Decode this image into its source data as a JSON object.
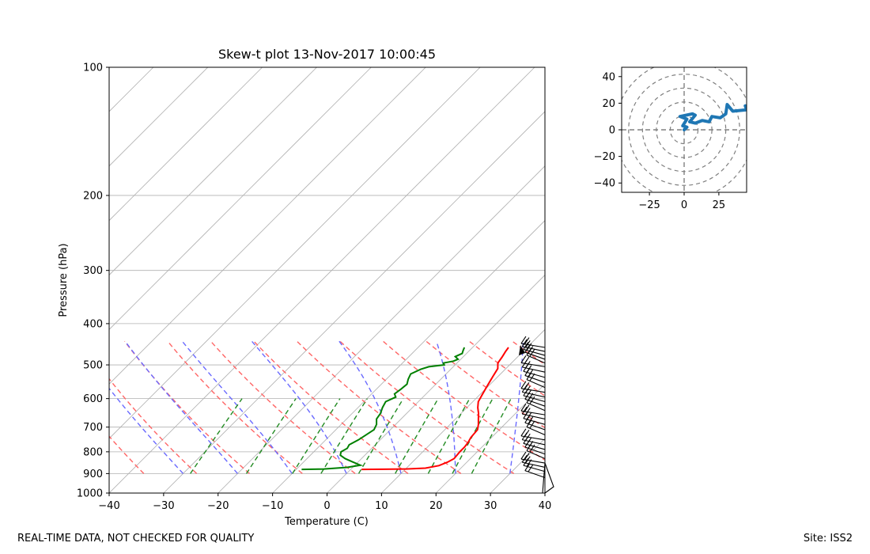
{
  "chart_data": [
    {
      "type": "skew-t",
      "title": "Skew-t plot 13-Nov-2017 10:00:45",
      "xlabel": "Temperature (C)",
      "ylabel": "Pressure (hPa)",
      "xlim": [
        -40,
        40
      ],
      "ylim": [
        1000,
        100
      ],
      "y_scale": "log",
      "grid": true,
      "x_ticks": [
        "−40",
        "−30",
        "−20",
        "−10",
        "0",
        "10",
        "20",
        "30",
        "40"
      ],
      "x_tick_values": [
        -40,
        -30,
        -20,
        -10,
        0,
        10,
        20,
        30,
        40
      ],
      "y_ticks": [
        "100",
        "200",
        "300",
        "400",
        "500",
        "600",
        "700",
        "800",
        "900",
        "1000"
      ],
      "y_tick_values": [
        100,
        200,
        300,
        400,
        500,
        600,
        700,
        800,
        900,
        1000
      ],
      "series": [
        {
          "name": "temperature",
          "color": "#ff0000",
          "points": [
            [
              880,
              2.0
            ],
            [
              879,
              6.0
            ],
            [
              878,
              10.0
            ],
            [
              874,
              13.5
            ],
            [
              862,
              15.5
            ],
            [
              845,
              16.5
            ],
            [
              830,
              17.0
            ],
            [
              800,
              16.8
            ],
            [
              780,
              16.8
            ],
            [
              760,
              16.6
            ],
            [
              740,
              16.2
            ],
            [
              710,
              16.0
            ],
            [
              690,
              15.2
            ],
            [
              670,
              14.2
            ],
            [
              650,
              13.2
            ],
            [
              630,
              12.0
            ],
            [
              610,
              11.0
            ],
            [
              590,
              10.5
            ],
            [
              570,
              10.0
            ],
            [
              550,
              9.5
            ],
            [
              530,
              9.0
            ],
            [
              510,
              8.5
            ],
            [
              495,
              7.5
            ],
            [
              480,
              7.2
            ],
            [
              465,
              6.8
            ],
            [
              455,
              6.6
            ]
          ]
        },
        {
          "name": "dewpoint",
          "color": "#008000",
          "points": [
            [
              880,
              -9.0
            ],
            [
              878,
              -5.0
            ],
            [
              870,
              -1.0
            ],
            [
              860,
              1.0
            ],
            [
              845,
              -1.0
            ],
            [
              830,
              -3.0
            ],
            [
              815,
              -4.5
            ],
            [
              800,
              -5.0
            ],
            [
              785,
              -4.5
            ],
            [
              770,
              -4.8
            ],
            [
              750,
              -4.0
            ],
            [
              730,
              -3.5
            ],
            [
              710,
              -3.0
            ],
            [
              690,
              -3.5
            ],
            [
              670,
              -4.5
            ],
            [
              650,
              -4.8
            ],
            [
              630,
              -5.5
            ],
            [
              610,
              -6.0
            ],
            [
              595,
              -5.0
            ],
            [
              585,
              -5.8
            ],
            [
              570,
              -5.5
            ],
            [
              555,
              -5.3
            ],
            [
              540,
              -6.0
            ],
            [
              525,
              -6.5
            ],
            [
              512,
              -5.5
            ],
            [
              505,
              -4.5
            ],
            [
              500,
              -2.0
            ],
            [
              495,
              -2.5
            ],
            [
              490,
              -1.0
            ],
            [
              485,
              -0.5
            ],
            [
              478,
              -1.5
            ],
            [
              470,
              -0.8
            ],
            [
              462,
              -1.2
            ],
            [
              455,
              -1.5
            ]
          ]
        }
      ],
      "dry_adiabats_label": "red dashed",
      "moist_adiabats_label": "blue dashed",
      "mixing_ratio_label": "green dashed",
      "wind_barbs": "black, right edge, 455–1000 hPa"
    },
    {
      "type": "hodograph",
      "xlim": [
        -45,
        45
      ],
      "ylim": [
        -47,
        47
      ],
      "x_ticks": [
        "−25",
        "0",
        "25"
      ],
      "x_tick_values": [
        -25,
        0,
        25
      ],
      "y_ticks": [
        "40",
        "20",
        "0",
        "−20",
        "−40"
      ],
      "y_tick_values": [
        40,
        20,
        0,
        -20,
        -40
      ],
      "rings": [
        10,
        20,
        30,
        40,
        50
      ],
      "series": [
        {
          "color": "#1f77b4",
          "points": [
            [
              0,
              0
            ],
            [
              2,
              2
            ],
            [
              -1,
              3
            ],
            [
              2,
              8
            ],
            [
              -3,
              10
            ],
            [
              6,
              12
            ],
            [
              8,
              11
            ],
            [
              4,
              6
            ],
            [
              8,
              5
            ],
            [
              13,
              7
            ],
            [
              18,
              6
            ],
            [
              20,
              10
            ],
            [
              26,
              9
            ],
            [
              30,
              12
            ],
            [
              31,
              19
            ],
            [
              35,
              14
            ],
            [
              45,
              15
            ],
            [
              44,
              18
            ]
          ]
        }
      ]
    }
  ],
  "footer": {
    "left": "REAL-TIME DATA, NOT CHECKED FOR QUALITY",
    "right": "Site: ISS2"
  }
}
